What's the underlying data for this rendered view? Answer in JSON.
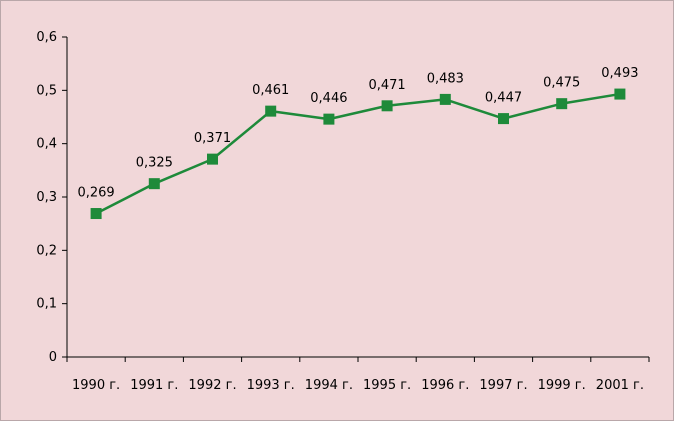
{
  "chart_data": {
    "type": "line",
    "title": "",
    "xlabel": "",
    "ylabel": "",
    "categories": [
      "1990 г.",
      "1991 г.",
      "1992 г.",
      "1993 г.",
      "1994 г.",
      "1995 г.",
      "1996 г.",
      "1997 г.",
      "1999 г.",
      "2001 г."
    ],
    "values": [
      0.269,
      0.325,
      0.371,
      0.461,
      0.446,
      0.471,
      0.483,
      0.447,
      0.475,
      0.493
    ],
    "data_labels": [
      "0,269",
      "0,325",
      "0,371",
      "0,461",
      "0,446",
      "0,471",
      "0,483",
      "0,447",
      "0,475",
      "0,493"
    ],
    "y_ticks": [
      0,
      0.1,
      0.2,
      0.3,
      0.4,
      0.5,
      0.6
    ],
    "y_tick_labels": [
      "0",
      "0,1",
      "0,2",
      "0,3",
      "0,4",
      "0,5",
      "0,6"
    ],
    "ylim": [
      0,
      0.6
    ],
    "grid": false,
    "legend": "none",
    "marker": "square",
    "colors": {
      "background": "#f1d7d9",
      "line": "#1e8a3a",
      "marker": "#1e8a3a",
      "axis": "#000000"
    }
  }
}
